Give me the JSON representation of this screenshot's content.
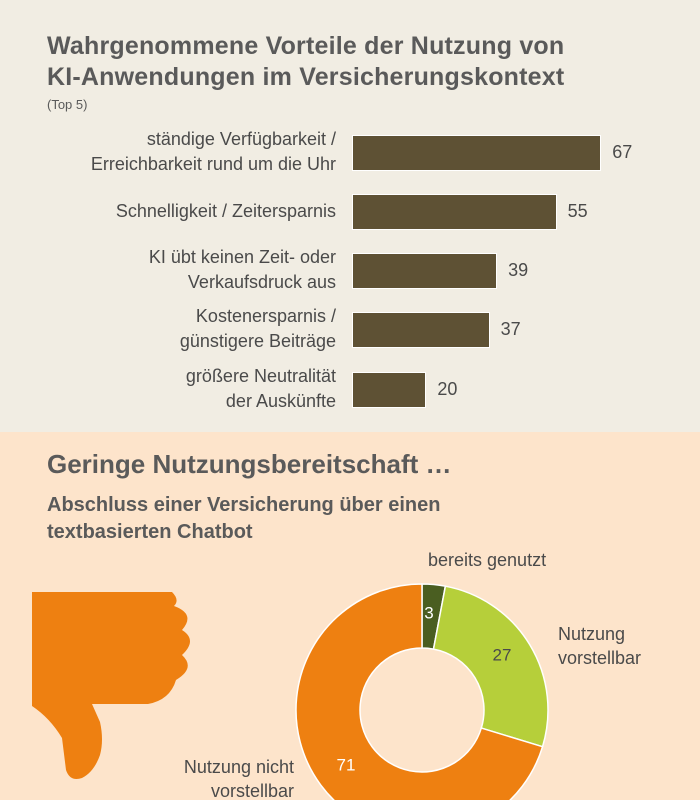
{
  "title_line1": "Wahrgenommene Vorteile der Nutzung von",
  "title_line2": "KI-Anwendungen im Versicherungskontext",
  "subtitle": "(Top 5)",
  "section2": {
    "heading": "Geringe Nutzungsbereitschaft …",
    "subheading_line1": "Abschluss einer Versicherung über einen",
    "subheading_line2": "textbasierten Chatbot"
  },
  "colors": {
    "bar": "#5e5134",
    "top_bg": "#f1ede3",
    "bottom_bg": "#fde4cb",
    "orange": "#ee8011",
    "light_green": "#b6cf3a",
    "dark_green": "#4a5e21"
  },
  "icon": "thumbs-down-icon",
  "chart_data": [
    {
      "type": "bar",
      "orientation": "horizontal",
      "categories": [
        [
          "ständige Verfügbarkeit /",
          "Erreichbarkeit rund um die Uhr"
        ],
        [
          "Schnelligkeit / Zeitersparnis"
        ],
        [
          "KI übt keinen Zeit- oder",
          "Verkaufsdruck aus"
        ],
        [
          "Kostenersparnis /",
          "günstigere Beiträge"
        ],
        [
          "größere Neutralität",
          "der Auskünfte"
        ]
      ],
      "values": [
        67,
        55,
        39,
        37,
        20
      ],
      "data_labels": [
        "67",
        "55",
        "39",
        "37",
        "20"
      ]
    },
    {
      "type": "pie",
      "donut": true,
      "slices": [
        {
          "label": "bereits genutzt",
          "value": 3,
          "color": "#4a5e21"
        },
        {
          "label_lines": [
            "Nutzung",
            "vorstellbar"
          ],
          "value": 27,
          "color": "#b6cf3a"
        },
        {
          "label_lines": [
            "Nutzung nicht",
            "vorstellbar"
          ],
          "value": 71,
          "color": "#ee8011"
        }
      ]
    }
  ]
}
